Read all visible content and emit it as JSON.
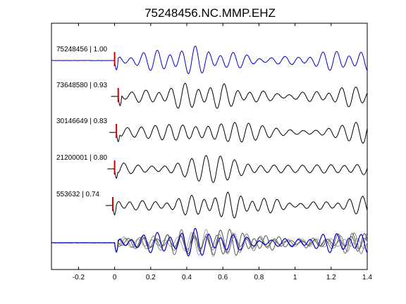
{
  "chart_data": {
    "type": "line",
    "title": "75248456.NC.MMP.EHZ",
    "xlabel": "",
    "ylabel": "",
    "xlim": [
      -0.35,
      1.4
    ],
    "xticks": [
      "-0.2",
      "0",
      "0.2",
      "0.4",
      "0.6",
      "0.8",
      "1",
      "1.2",
      "1.4"
    ],
    "xtick_values": [
      -0.2,
      0,
      0.2,
      0.4,
      0.6,
      0.8,
      1.0,
      1.2,
      1.4
    ],
    "grid": false,
    "series": [
      {
        "name": "75248456 | 1.00",
        "color": "#0000cc",
        "pick_time": 0.0,
        "seed": 1
      },
      {
        "name": "73648580 | 0.93",
        "color": "#000000",
        "pick_time": 0.02,
        "seed": 2
      },
      {
        "name": "30146649 | 0.83",
        "color": "#000000",
        "pick_time": 0.01,
        "seed": 3
      },
      {
        "name": "21200001 | 0.80",
        "color": "#000000",
        "pick_time": 0.0,
        "seed": 4
      },
      {
        "name": "553632 | 0.74",
        "color": "#000000",
        "pick_time": -0.01,
        "seed": 5
      }
    ],
    "stack": {
      "colors": [
        "#0000cc",
        "#555555",
        "#777777",
        "#999999",
        "#444444"
      ]
    },
    "pick_color": "#cc0000"
  }
}
